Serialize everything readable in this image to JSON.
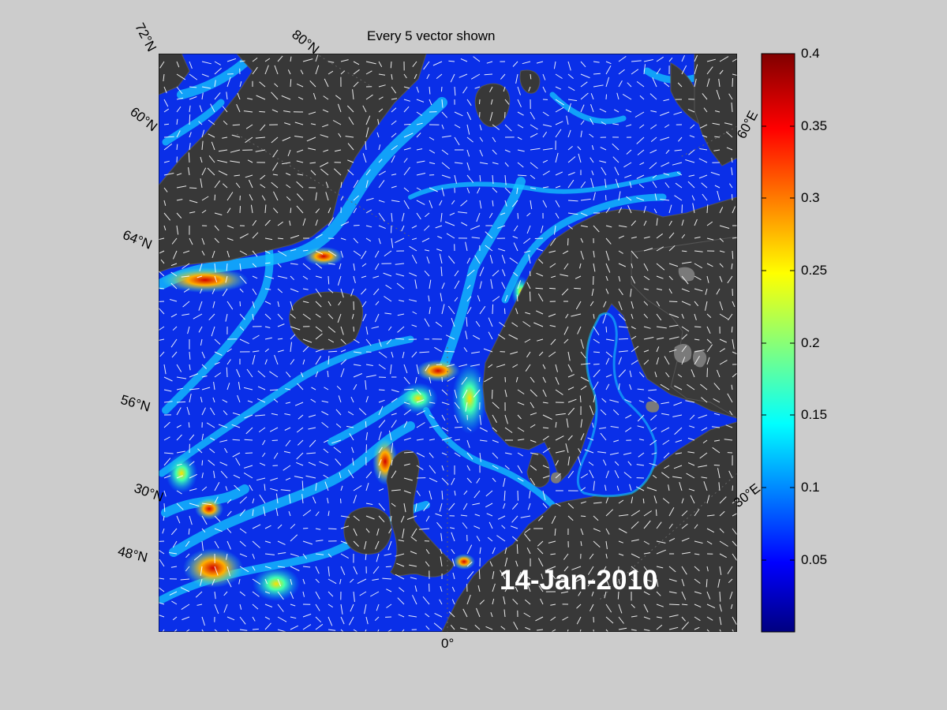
{
  "map": {
    "title": "Every 5 vector shown",
    "date": "14-Jan-2010",
    "lat_labels": [
      "72°N",
      "60°N",
      "64°N",
      "56°N",
      "30°N",
      "48°N"
    ],
    "lon_labels_top": [
      "80°N"
    ],
    "lon_labels_right": [
      "60°E",
      "30°E"
    ],
    "lon_label_bottom": "0°",
    "colors": {
      "background": "#cccccc",
      "land": "#383838",
      "ocean_low": "#0015c0",
      "arrow": "#ffffff"
    }
  },
  "colorbar": {
    "ticks": [
      "0.4",
      "0.35",
      "0.3",
      "0.25",
      "0.2",
      "0.15",
      "0.1",
      "0.05"
    ],
    "range": [
      0,
      0.4
    ],
    "colormap": "jet"
  }
}
